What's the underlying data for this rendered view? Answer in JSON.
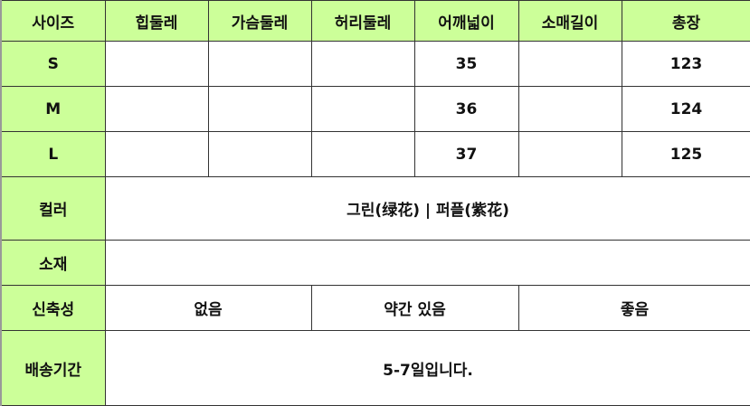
{
  "colors": {
    "header_bg": "#ccff99",
    "border": "#333333"
  },
  "header": [
    "사이즈",
    "힙둘레",
    "가슴둘레",
    "허리둘레",
    "어깨넓이",
    "소매길이",
    "총장"
  ],
  "sizes": [
    {
      "size": "S",
      "hip": "",
      "chest": "",
      "waist": "",
      "shoulder": "35",
      "sleeve": "",
      "length": "123"
    },
    {
      "size": "M",
      "hip": "",
      "chest": "",
      "waist": "",
      "shoulder": "36",
      "sleeve": "",
      "length": "124"
    },
    {
      "size": "L",
      "hip": "",
      "chest": "",
      "waist": "",
      "shoulder": "37",
      "sleeve": "",
      "length": "125"
    }
  ],
  "color": {
    "label": "컬러",
    "value": "그린(绿花) | 퍼플(紫花)"
  },
  "material": {
    "label": "소재",
    "value": ""
  },
  "stretch": {
    "label": "신축성",
    "options": [
      "없음",
      "약간 있음",
      "좋음"
    ]
  },
  "delivery": {
    "label": "배송기간",
    "value": "5-7일입니다."
  }
}
